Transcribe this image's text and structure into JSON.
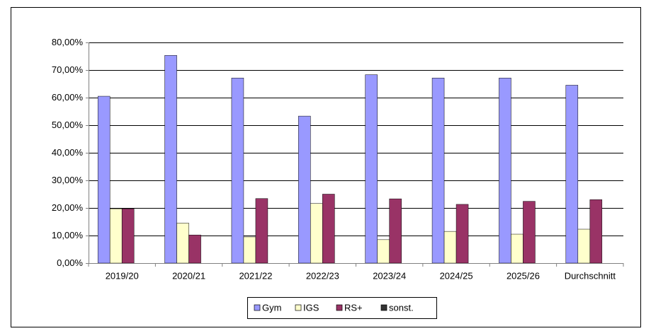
{
  "chart_data": {
    "type": "bar",
    "categories": [
      "2019/20",
      "2020/21",
      "2021/22",
      "2022/23",
      "2023/24",
      "2024/25",
      "2025/26",
      "Durchschnitt"
    ],
    "series": [
      {
        "name": "Gym",
        "color": "#9999ff",
        "values": [
          60.5,
          75.3,
          67.1,
          53.3,
          68.3,
          67.1,
          67.1,
          64.5
        ]
      },
      {
        "name": "IGS",
        "color": "#ffffcc",
        "values": [
          19.7,
          14.5,
          9.5,
          21.6,
          8.5,
          11.5,
          10.5,
          12.3
        ]
      },
      {
        "name": "RS+",
        "color": "#993366",
        "values": [
          19.7,
          10.2,
          23.4,
          25.0,
          23.3,
          21.3,
          22.4,
          23.0
        ]
      },
      {
        "name": "sonst.",
        "color": "#333333",
        "values": [
          0,
          0,
          0,
          0,
          0,
          0,
          0,
          0
        ]
      }
    ],
    "ylim": [
      0,
      80
    ],
    "yticks": [
      {
        "value": 0,
        "label": "0,00%"
      },
      {
        "value": 10,
        "label": "10,00%"
      },
      {
        "value": 20,
        "label": "20,00%"
      },
      {
        "value": 30,
        "label": "30,00%"
      },
      {
        "value": 40,
        "label": "40,00%"
      },
      {
        "value": 50,
        "label": "50,00%"
      },
      {
        "value": 60,
        "label": "60,00%"
      },
      {
        "value": 70,
        "label": "70,00%"
      },
      {
        "value": 80,
        "label": "80,00%"
      }
    ],
    "grid": true,
    "legend": "bottom"
  }
}
